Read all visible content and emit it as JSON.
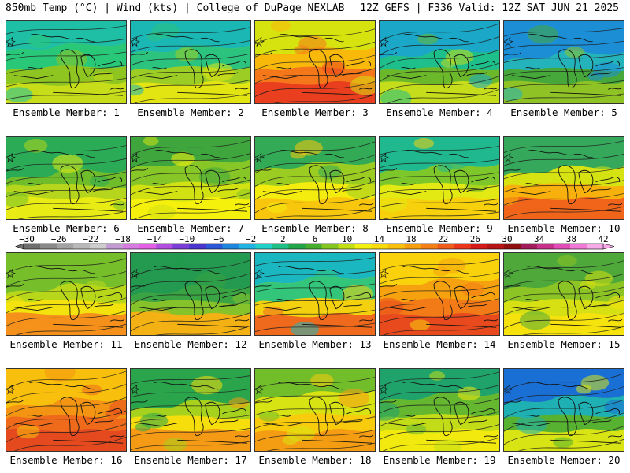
{
  "header": {
    "left": "850mb Temp (°C) | Wind (kts) | College of DuPage NEXLAB",
    "right": "12Z GEFS | F336 Valid: 12Z SAT JUN 21 2025"
  },
  "panels": [
    {
      "label": "Ensemble Member: 1",
      "palette": [
        "#1ebfa5",
        "#29c879",
        "#8fc520",
        "#c7dd1a"
      ]
    },
    {
      "label": "Ensemble Member: 2",
      "palette": [
        "#1ab7b5",
        "#2cc37e",
        "#9ccd25",
        "#e2e512"
      ]
    },
    {
      "label": "Ensemble Member: 3",
      "palette": [
        "#d7e30e",
        "#f9b90b",
        "#f4781a",
        "#ea3f1f"
      ]
    },
    {
      "label": "Ensemble Member: 4",
      "palette": [
        "#1aa7c8",
        "#1ebf8a",
        "#6bb82b",
        "#c5dd1a"
      ]
    },
    {
      "label": "Ensemble Member: 5",
      "palette": [
        "#1b8ed6",
        "#25b3bb",
        "#46a83b",
        "#8fc325"
      ]
    },
    {
      "label": "Ensemble Member: 6",
      "palette": [
        "#2bab55",
        "#6fbd2a",
        "#b5d61c",
        "#e8ec14"
      ]
    },
    {
      "label": "Ensemble Member: 7",
      "palette": [
        "#3fa63e",
        "#86c626",
        "#d1e112",
        "#f6f00d"
      ]
    },
    {
      "label": "Ensemble Member: 8",
      "palette": [
        "#33aa55",
        "#9bcc21",
        "#f4ec0f",
        "#f8c60c"
      ]
    },
    {
      "label": "Ensemble Member: 9",
      "palette": [
        "#20b88e",
        "#7ec72a",
        "#e3e913",
        "#f7d10c"
      ]
    },
    {
      "label": "Ensemble Member: 10",
      "palette": [
        "#36a85c",
        "#d6e212",
        "#f8b00c",
        "#f06519"
      ]
    },
    {
      "label": "Ensemble Member: 11",
      "palette": [
        "#76bf2a",
        "#b8d71a",
        "#f3e20d",
        "#f5911a"
      ]
    },
    {
      "label": "Ensemble Member: 12",
      "palette": [
        "#239a4f",
        "#3aa343",
        "#86c22a",
        "#f3b114"
      ]
    },
    {
      "label": "Ensemble Member: 13",
      "palette": [
        "#1bb7c0",
        "#33c57a",
        "#f3d10e",
        "#ef6a1d"
      ]
    },
    {
      "label": "Ensemble Member: 14",
      "palette": [
        "#f9d20b",
        "#f6a20f",
        "#f27a17",
        "#e84a1e"
      ]
    },
    {
      "label": "Ensemble Member: 15",
      "palette": [
        "#4ea93a",
        "#8cc325",
        "#d6e013",
        "#f6e20d"
      ]
    },
    {
      "label": "Ensemble Member: 16",
      "palette": [
        "#f8c00c",
        "#f49413",
        "#ef6a1b",
        "#e54a1f"
      ]
    },
    {
      "label": "Ensemble Member: 17",
      "palette": [
        "#2aa54b",
        "#a6d21d",
        "#f6de0d",
        "#f59a14"
      ]
    },
    {
      "label": "Ensemble Member: 18",
      "palette": [
        "#71bd2a",
        "#d8e313",
        "#f8cc0c",
        "#f59d12"
      ]
    },
    {
      "label": "Ensemble Member: 19",
      "palette": [
        "#1fa36b",
        "#64b72f",
        "#c3dc18",
        "#f2ea0e"
      ]
    },
    {
      "label": "Ensemble Member: 20",
      "palette": [
        "#1a6fd5",
        "#1fb0b3",
        "#58b232",
        "#d8e413"
      ]
    }
  ],
  "colorbar": {
    "labels": [
      "-30",
      "-26",
      "-22",
      "-18",
      "-14",
      "-10",
      "-6",
      "-2",
      "2",
      "6",
      "10",
      "14",
      "18",
      "22",
      "26",
      "30",
      "34",
      "38",
      "42"
    ],
    "colors": [
      "#6e6e6e",
      "#8a8a8a",
      "#a3a3a3",
      "#b9b9b9",
      "#cdcdcd",
      "#c39bd3",
      "#d77be0",
      "#e25fe6",
      "#b14ee0",
      "#7b3fd8",
      "#4a36cf",
      "#2b57d6",
      "#1f86e0",
      "#20b3e3",
      "#22d1c6",
      "#1fbf86",
      "#22a549",
      "#46ad2f",
      "#84c51f",
      "#c3df14",
      "#f2f111",
      "#f8dc0c",
      "#f8c00c",
      "#f6a010",
      "#f37f16",
      "#ef5c1b",
      "#ea371c",
      "#d51a1a",
      "#b61515",
      "#8f1010",
      "#a01c5a",
      "#c8308a",
      "#e24cb7",
      "#f27ad6",
      "#f6aae8"
    ]
  }
}
